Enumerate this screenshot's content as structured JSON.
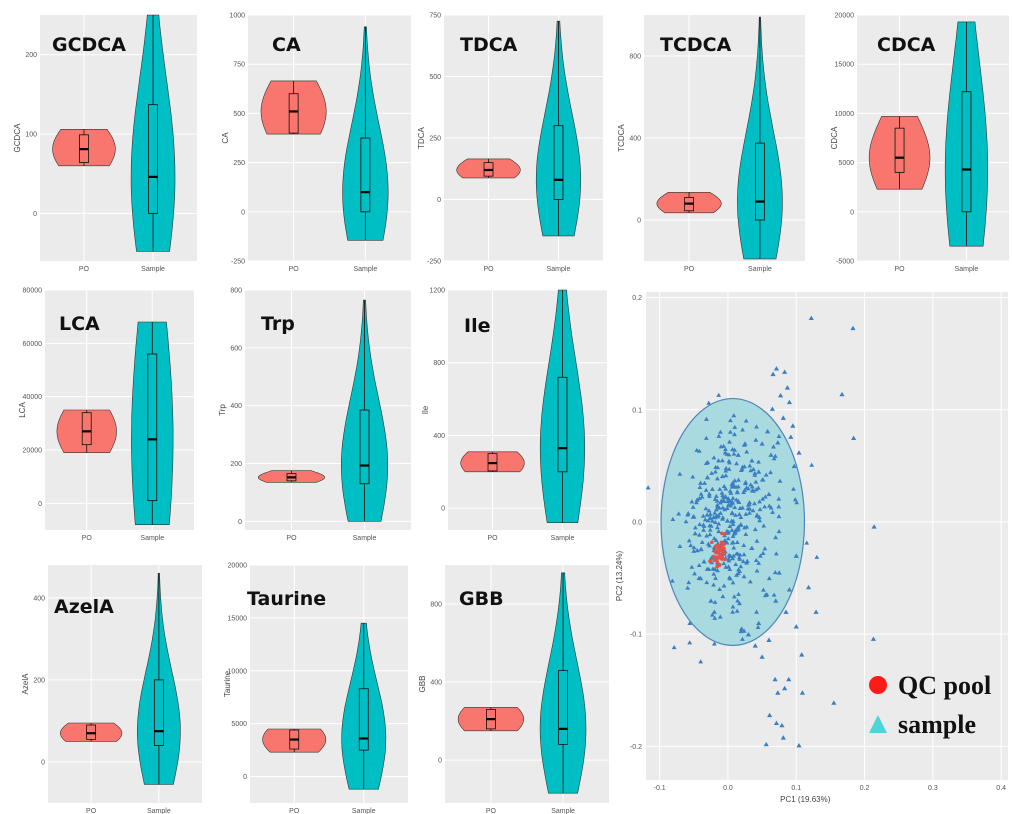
{
  "figure": {
    "colors": {
      "qc": "#f8766d",
      "sample": "#00bfc4",
      "panel_bg": "#ebebeb",
      "grid": "#ffffff",
      "pca_point": "#3a7fc1",
      "pca_qc": "#e8504a",
      "ellipse_fill": "#a8dadf",
      "ellipse_stroke": "#4f86b8"
    },
    "legend": {
      "qc_label": "QC pool",
      "sample_label": "sample",
      "qc_marker": "red-circle",
      "sample_marker": "cyan-triangle"
    }
  },
  "chart_data": [
    {
      "type": "violin",
      "title": "GCDCA",
      "ylabel": "GCDCA",
      "categories": [
        "PO",
        "Sample"
      ],
      "ylim": [
        -60,
        250
      ],
      "yticks": [
        "0",
        "100",
        "200"
      ],
      "ytick_values": [
        0,
        100,
        200
      ],
      "series": [
        {
          "name": "PO",
          "min": 60,
          "q1": 64,
          "median": 81,
          "q3": 99,
          "max": 106
        },
        {
          "name": "Sample",
          "min": -48,
          "q1": 0,
          "median": 46,
          "q3": 137,
          "max": 250
        }
      ]
    },
    {
      "type": "violin",
      "title": "CA",
      "ylabel": "CA",
      "categories": [
        "PO",
        "Sample"
      ],
      "ylim": [
        -250,
        1000
      ],
      "yticks": [
        "-250",
        "0",
        "250",
        "500",
        "750",
        "1000"
      ],
      "ytick_values": [
        -250,
        0,
        250,
        500,
        750,
        1000
      ],
      "series": [
        {
          "name": "PO",
          "min": 395,
          "q1": 400,
          "median": 510,
          "q3": 600,
          "max": 665
        },
        {
          "name": "Sample",
          "min": -145,
          "q1": 0,
          "median": 100,
          "q3": 375,
          "max": 940
        }
      ]
    },
    {
      "type": "violin",
      "title": "TDCA",
      "ylabel": "TDCA",
      "categories": [
        "PO",
        "Sample"
      ],
      "ylim": [
        -250,
        750
      ],
      "yticks": [
        "-250",
        "0",
        "250",
        "500",
        "750"
      ],
      "ytick_values": [
        -250,
        0,
        250,
        500,
        750
      ],
      "series": [
        {
          "name": "PO",
          "min": 88,
          "q1": 95,
          "median": 120,
          "q3": 150,
          "max": 165
        },
        {
          "name": "Sample",
          "min": -148,
          "q1": 0,
          "median": 80,
          "q3": 300,
          "max": 725
        }
      ]
    },
    {
      "type": "violin",
      "title": "TCDCA",
      "ylabel": "TCDCA",
      "categories": [
        "PO",
        "Sample"
      ],
      "ylim": [
        -200,
        1000
      ],
      "yticks": [
        "0",
        "400",
        "800"
      ],
      "ytick_values": [
        0,
        400,
        800
      ],
      "series": [
        {
          "name": "PO",
          "min": 35,
          "q1": 45,
          "median": 80,
          "q3": 110,
          "max": 135
        },
        {
          "name": "Sample",
          "min": -190,
          "q1": 0,
          "median": 90,
          "q3": 375,
          "max": 990
        }
      ]
    },
    {
      "type": "violin",
      "title": "CDCA",
      "ylabel": "CDCA",
      "categories": [
        "PO",
        "Sample"
      ],
      "ylim": [
        -5000,
        20000
      ],
      "yticks": [
        "-5000",
        "0",
        "5000",
        "10000",
        "15000",
        "20000"
      ],
      "ytick_values": [
        -5000,
        0,
        5000,
        10000,
        15000,
        20000
      ],
      "series": [
        {
          "name": "PO",
          "min": 2300,
          "q1": 4000,
          "median": 5500,
          "q3": 8500,
          "max": 9700
        },
        {
          "name": "Sample",
          "min": -3500,
          "q1": 0,
          "median": 4300,
          "q3": 12200,
          "max": 19300
        }
      ]
    },
    {
      "type": "violin",
      "title": "LCA",
      "ylabel": "LCA",
      "categories": [
        "PO",
        "Sample"
      ],
      "ylim": [
        -10000,
        80000
      ],
      "yticks": [
        "0",
        "20000",
        "40000",
        "60000",
        "80000"
      ],
      "ytick_values": [
        0,
        20000,
        40000,
        60000,
        80000
      ],
      "series": [
        {
          "name": "PO",
          "min": 19000,
          "q1": 22000,
          "median": 27000,
          "q3": 34000,
          "max": 35000
        },
        {
          "name": "Sample",
          "min": -8000,
          "q1": 1000,
          "median": 24000,
          "q3": 56000,
          "max": 68000
        }
      ]
    },
    {
      "type": "violin",
      "title": "Trp",
      "ylabel": "Trp",
      "categories": [
        "PO",
        "Sample"
      ],
      "ylim": [
        -30,
        800
      ],
      "yticks": [
        "0",
        "200",
        "400",
        "600",
        "800"
      ],
      "ytick_values": [
        0,
        200,
        400,
        600,
        800
      ],
      "series": [
        {
          "name": "PO",
          "min": 135,
          "q1": 140,
          "median": 152,
          "q3": 165,
          "max": 175
        },
        {
          "name": "Sample",
          "min": 0,
          "q1": 130,
          "median": 193,
          "q3": 385,
          "max": 765
        }
      ]
    },
    {
      "type": "violin",
      "title": "Ile",
      "ylabel": "Ile",
      "categories": [
        "PO",
        "Sample"
      ],
      "ylim": [
        -120,
        1200
      ],
      "yticks": [
        "0",
        "400",
        "800",
        "1200"
      ],
      "ytick_values": [
        0,
        400,
        800,
        1200
      ],
      "series": [
        {
          "name": "PO",
          "min": 200,
          "q1": 205,
          "median": 248,
          "q3": 300,
          "max": 310
        },
        {
          "name": "Sample",
          "min": -80,
          "q1": 200,
          "median": 330,
          "q3": 720,
          "max": 1200
        }
      ]
    },
    {
      "type": "violin",
      "title": "AzelA",
      "ylabel": "AzelA",
      "categories": [
        "PO",
        "Sample"
      ],
      "ylim": [
        -100,
        480
      ],
      "yticks": [
        "0",
        "200",
        "400"
      ],
      "ytick_values": [
        0,
        200,
        400
      ],
      "series": [
        {
          "name": "PO",
          "min": 50,
          "q1": 55,
          "median": 70,
          "q3": 90,
          "max": 95
        },
        {
          "name": "Sample",
          "min": -55,
          "q1": 40,
          "median": 75,
          "q3": 200,
          "max": 460
        }
      ]
    },
    {
      "type": "violin",
      "title": "Taurine",
      "ylabel": "Taurine",
      "categories": [
        "PO",
        "Sample"
      ],
      "ylim": [
        -2500,
        20000
      ],
      "yticks": [
        "0",
        "5000",
        "10000",
        "15000",
        "20000"
      ],
      "ytick_values": [
        0,
        5000,
        10000,
        15000,
        20000
      ],
      "series": [
        {
          "name": "PO",
          "min": 2300,
          "q1": 2600,
          "median": 3500,
          "q3": 4400,
          "max": 4500
        },
        {
          "name": "Sample",
          "min": -1200,
          "q1": 2500,
          "median": 3600,
          "q3": 8300,
          "max": 14500
        }
      ]
    },
    {
      "type": "violin",
      "title": "GBB",
      "ylabel": "GBB",
      "categories": [
        "PO",
        "Sample"
      ],
      "ylim": [
        -220,
        1000
      ],
      "yticks": [
        "0",
        "400",
        "800"
      ],
      "ytick_values": [
        0,
        400,
        800
      ],
      "series": [
        {
          "name": "PO",
          "min": 150,
          "q1": 160,
          "median": 210,
          "q3": 260,
          "max": 270
        },
        {
          "name": "Sample",
          "min": -170,
          "q1": 80,
          "median": 160,
          "q3": 460,
          "max": 960
        }
      ]
    },
    {
      "type": "scatter",
      "xlabel": "PC1 (19.63%)",
      "ylabel": "PC2 (13.24%)",
      "xlim": [
        -0.12,
        0.41
      ],
      "ylim": [
        -0.23,
        0.205
      ],
      "xticks": [
        "-0.1",
        "0.0",
        "0.1",
        "0.2",
        "0.3",
        "0.4"
      ],
      "xtick_values": [
        -0.1,
        0,
        0.1,
        0.2,
        0.3,
        0.4
      ],
      "yticks": [
        "-0.2",
        "-0.1",
        "0.0",
        "0.1",
        "0.2"
      ],
      "ytick_values": [
        -0.2,
        -0.1,
        0,
        0.1,
        0.2
      ],
      "ellipse": {
        "cx": 0.007,
        "cy": 0.0,
        "rx": 0.105,
        "ry": 0.11
      },
      "series": [
        {
          "name": "sample",
          "marker": "triangle",
          "points": [
            [
              0.122,
              0.182
            ],
            [
              0.183,
              0.173
            ],
            [
              0.167,
              0.114
            ],
            [
              0.184,
              0.075
            ],
            [
              0.071,
              0.137
            ],
            [
              0.083,
              0.134
            ],
            [
              0.066,
              0.132
            ],
            [
              0.087,
              0.12
            ],
            [
              0.077,
              0.113
            ],
            [
              0.09,
              0.107
            ],
            [
              0.065,
              0.101
            ],
            [
              0.095,
              0.086
            ],
            [
              0.081,
              0.093
            ],
            [
              0.058,
              0.081
            ],
            [
              0.092,
              0.076
            ],
            [
              0.104,
              0.062
            ],
            [
              0.073,
              0.071
            ],
            [
              0.063,
              0.06
            ],
            [
              0.097,
              0.05
            ],
            [
              0.214,
              -0.004
            ],
            [
              0.118,
              -0.058
            ],
            [
              0.129,
              -0.08
            ],
            [
              0.1,
              -0.093
            ],
            [
              0.213,
              -0.104
            ],
            [
              0.108,
              -0.118
            ],
            [
              0.069,
              -0.14
            ],
            [
              0.083,
              -0.148
            ],
            [
              0.073,
              -0.152
            ],
            [
              0.089,
              -0.14
            ],
            [
              0.155,
              -0.161
            ],
            [
              0.109,
              -0.152
            ],
            [
              0.061,
              -0.172
            ],
            [
              0.071,
              -0.179
            ],
            [
              0.079,
              -0.181
            ],
            [
              0.056,
              -0.198
            ],
            [
              0.104,
              -0.199
            ],
            [
              0.081,
              -0.192
            ],
            [
              0.05,
              -0.12
            ],
            [
              0.04,
              -0.11
            ],
            [
              0.06,
              -0.105
            ],
            [
              0.03,
              -0.1
            ],
            [
              0.045,
              -0.09
            ],
            [
              0.02,
              -0.095
            ],
            [
              0.1,
              -0.03
            ],
            [
              0.09,
              -0.06
            ],
            [
              0.085,
              -0.08
            ],
            [
              0.07,
              -0.07
            ],
            [
              0.055,
              -0.065
            ],
            [
              0.075,
              -0.045
            ],
            [
              0.06,
              0.025
            ],
            [
              0.045,
              0.045
            ],
            [
              0.035,
              0.055
            ],
            [
              0.025,
              0.07
            ],
            [
              0.015,
              0.06
            ],
            [
              0.05,
              0.07
            ],
            [
              -0.03,
              0.04
            ],
            [
              -0.04,
              0.035
            ],
            [
              -0.045,
              0.02
            ],
            [
              -0.05,
              0.005
            ],
            [
              -0.048,
              -0.01
            ],
            [
              -0.045,
              -0.025
            ],
            [
              -0.035,
              -0.035
            ],
            [
              -0.04,
              -0.05
            ],
            [
              -0.025,
              -0.07
            ],
            [
              -0.02,
              -0.08
            ]
          ]
        },
        {
          "name": "QC pool",
          "marker": "circle"
        }
      ]
    }
  ]
}
